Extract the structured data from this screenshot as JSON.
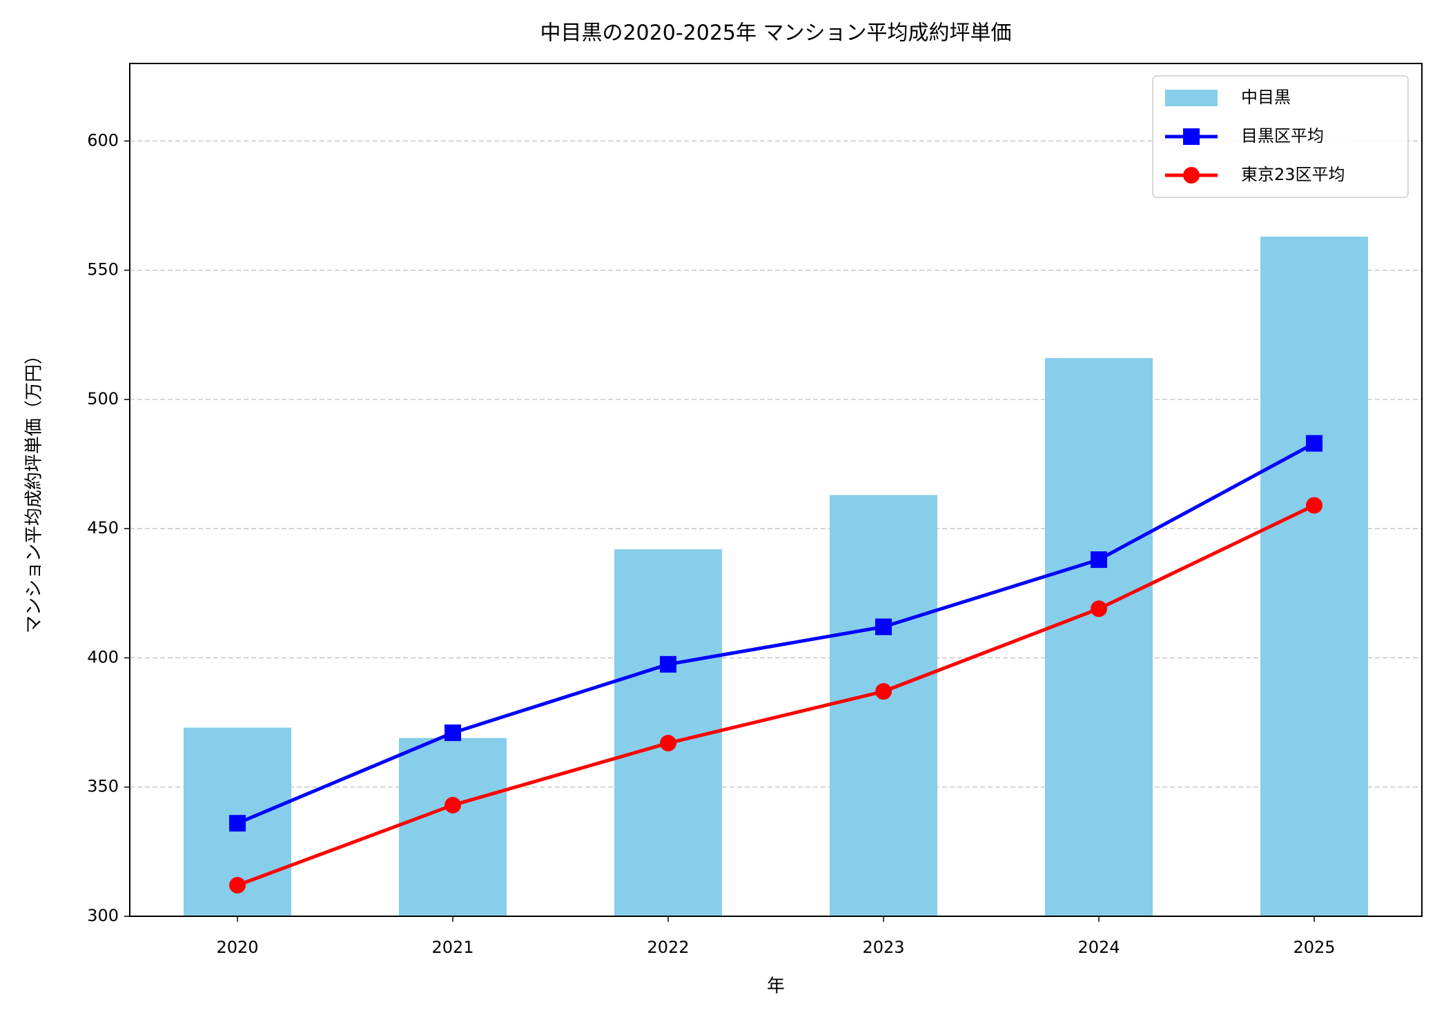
{
  "chart_data": {
    "type": "bar",
    "title": "中目黒の2020-2025年 マンション平均成約坪単価",
    "x_label": "年",
    "y_label": "マンション平均成約坪単価（万円）",
    "categories": [
      "2020",
      "2021",
      "2022",
      "2023",
      "2024",
      "2025"
    ],
    "series": [
      {
        "name": "中目黒",
        "type": "bar",
        "color": "#87ceeb",
        "values": [
          373,
          369,
          442,
          463,
          516,
          563
        ]
      },
      {
        "name": "目黒区平均",
        "type": "line",
        "marker": "square",
        "color": "#0000ff",
        "values": [
          336,
          371,
          397.5,
          412,
          438,
          483
        ]
      },
      {
        "name": "東京23区平均",
        "type": "line",
        "marker": "circle",
        "color": "#ff0000",
        "values": [
          312,
          343,
          367,
          387,
          419,
          459
        ]
      }
    ],
    "ylim": [
      300,
      630
    ],
    "yticks": [
      300,
      350,
      400,
      450,
      500,
      550,
      600
    ],
    "grid": true,
    "legend": "upper right"
  }
}
